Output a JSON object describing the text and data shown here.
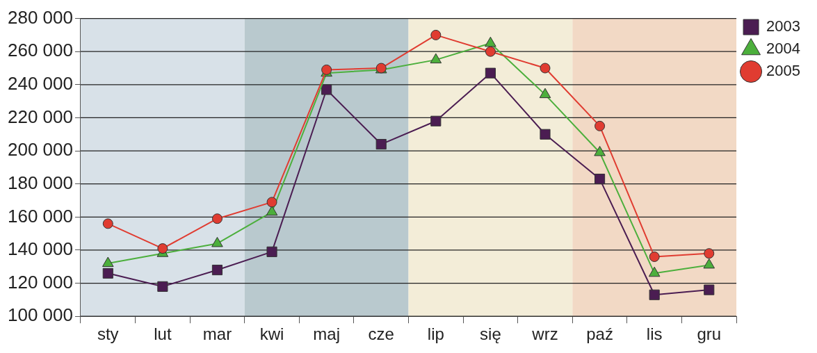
{
  "chart_data": {
    "type": "line",
    "categories": [
      "sty",
      "lut",
      "mar",
      "kwi",
      "maj",
      "cze",
      "lip",
      "się",
      "wrz",
      "paź",
      "lis",
      "gru"
    ],
    "series": [
      {
        "name": "2003",
        "color": "#4b1d52",
        "marker": "square",
        "values": [
          126000,
          118000,
          128000,
          139000,
          237000,
          204000,
          218000,
          247000,
          210000,
          183000,
          113000,
          116000
        ]
      },
      {
        "name": "2004",
        "color": "#4caf3c",
        "marker": "triangle",
        "values": [
          132000,
          138000,
          144000,
          163000,
          247000,
          249000,
          255000,
          265000,
          234000,
          199000,
          126000,
          131000
        ]
      },
      {
        "name": "2005",
        "color": "#e03c31",
        "marker": "circle",
        "values": [
          156000,
          141000,
          159000,
          169000,
          249000,
          250000,
          270000,
          260000,
          250000,
          215000,
          136000,
          138000
        ]
      }
    ],
    "ylim": [
      100000,
      280000
    ],
    "yticks": [
      {
        "value": 100000,
        "label": "100 000"
      },
      {
        "value": 120000,
        "label": "120 000"
      },
      {
        "value": 140000,
        "label": "140 000"
      },
      {
        "value": 160000,
        "label": "160 000"
      },
      {
        "value": 180000,
        "label": "180 000"
      },
      {
        "value": 200000,
        "label": "200 000"
      },
      {
        "value": 220000,
        "label": "220 000"
      },
      {
        "value": 240000,
        "label": "240 000"
      },
      {
        "value": 260000,
        "label": "260 000"
      },
      {
        "value": 280000,
        "label": "280 000"
      }
    ],
    "bands": [
      {
        "axis": "x",
        "from": "sty",
        "to": "mar",
        "color": "#d8e1e8"
      },
      {
        "axis": "x",
        "from": "kwi",
        "to": "cze",
        "color": "#b9c9ce"
      },
      {
        "axis": "x",
        "from": "lip",
        "to": "wrz",
        "color": "#f3edd8"
      },
      {
        "axis": "x",
        "from": "paź",
        "to": "gru",
        "color": "#f2d9c5"
      }
    ],
    "grid": "y",
    "legend": "top right",
    "line_style": "solid"
  }
}
